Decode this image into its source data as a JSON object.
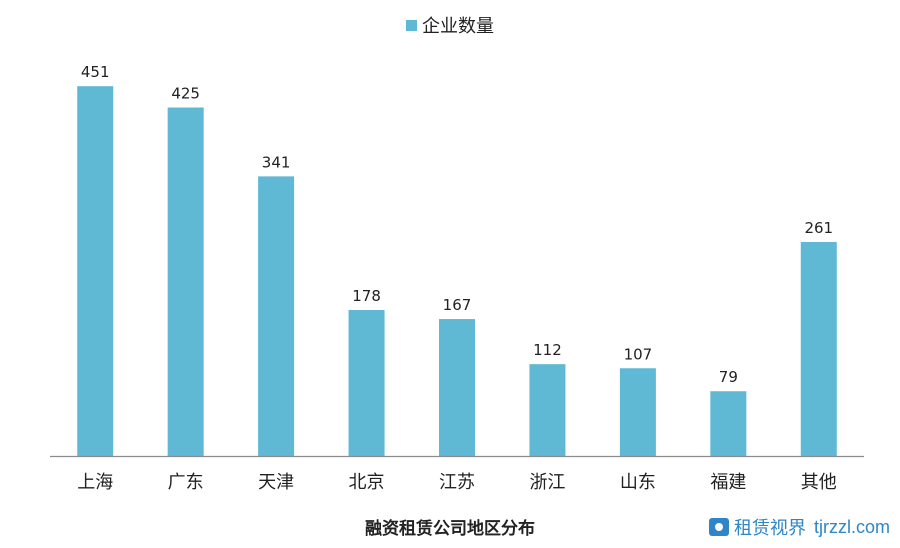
{
  "chart_data": {
    "type": "bar",
    "title": "",
    "xlabel": "融资租赁公司地区分布",
    "ylabel": "",
    "categories": [
      "上海",
      "广东",
      "天津",
      "北京",
      "江苏",
      "浙江",
      "山东",
      "福建",
      "其他"
    ],
    "series": [
      {
        "name": "企业数量",
        "values": [
          451,
          425,
          341,
          178,
          167,
          112,
          107,
          79,
          261
        ]
      }
    ],
    "ylim": [
      0,
      500
    ],
    "grid": false,
    "legend": "top-center",
    "data_labels": true
  },
  "colors": {
    "bar": "#5fb8d4",
    "axis": "#8c8c8c",
    "watermark": "#2e86c8"
  },
  "watermark": {
    "text": "租赁视界",
    "url": "tjrzzl.com",
    "icon": "brand-logo-icon"
  }
}
